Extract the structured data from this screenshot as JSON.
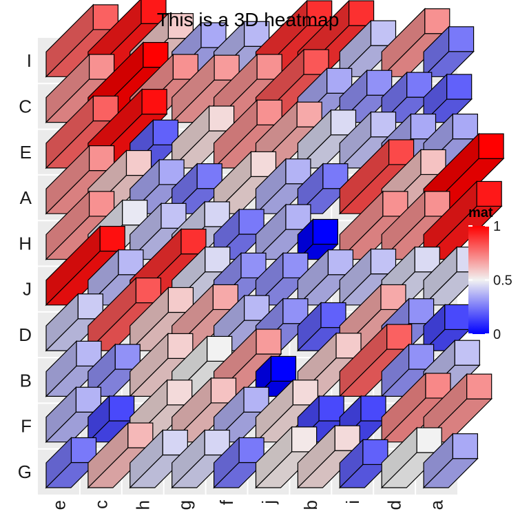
{
  "chart_data": {
    "type": "heatmap",
    "title": "This is a 3D heatmap",
    "row_labels": [
      "G",
      "F",
      "B",
      "D",
      "J",
      "H",
      "A",
      "E",
      "C",
      "I"
    ],
    "col_labels": [
      "e",
      "c",
      "h",
      "g",
      "f",
      "j",
      "b",
      "i",
      "d",
      "a"
    ],
    "values": [
      [
        0.25,
        0.62,
        0.44,
        0.44,
        0.25,
        0.52,
        0.55,
        0.2,
        0.5,
        0.35
      ],
      [
        0.37,
        0.15,
        0.55,
        0.6,
        0.37,
        0.55,
        0.15,
        0.15,
        0.72,
        0.7
      ],
      [
        0.38,
        0.3,
        0.57,
        0.5,
        0.68,
        0.0,
        0.58,
        0.8,
        0.3,
        0.4
      ],
      [
        0.42,
        0.82,
        0.58,
        0.65,
        0.38,
        0.3,
        0.2,
        0.65,
        0.3,
        0.15
      ],
      [
        0.97,
        0.38,
        0.9,
        0.45,
        0.3,
        0.3,
        0.38,
        0.4,
        0.45,
        0.45
      ],
      [
        0.7,
        0.48,
        0.4,
        0.44,
        0.25,
        0.37,
        0.0,
        0.7,
        0.7,
        0.95
      ],
      [
        0.7,
        0.58,
        0.35,
        0.25,
        0.55,
        0.37,
        0.25,
        0.85,
        0.6,
        1.0
      ],
      [
        0.8,
        0.97,
        0.2,
        0.55,
        0.7,
        0.65,
        0.45,
        0.4,
        0.35,
        0.35
      ],
      [
        0.7,
        1.0,
        0.7,
        0.68,
        0.7,
        0.82,
        0.35,
        0.3,
        0.25,
        0.2
      ],
      [
        0.8,
        0.95,
        0.58,
        0.35,
        0.38,
        0.9,
        0.9,
        0.4,
        0.7,
        0.25
      ]
    ],
    "legend": {
      "title": "mat",
      "ticks": [
        0,
        0.5,
        1
      ],
      "tick_labels": [
        "0",
        "0.5",
        "1"
      ],
      "colors": {
        "low": "#0000ff",
        "mid": "#f2f2f2",
        "high": "#ff0000"
      },
      "placement": "right"
    },
    "panel_background": "#ebebeb",
    "grid_color": "#ffffff"
  }
}
